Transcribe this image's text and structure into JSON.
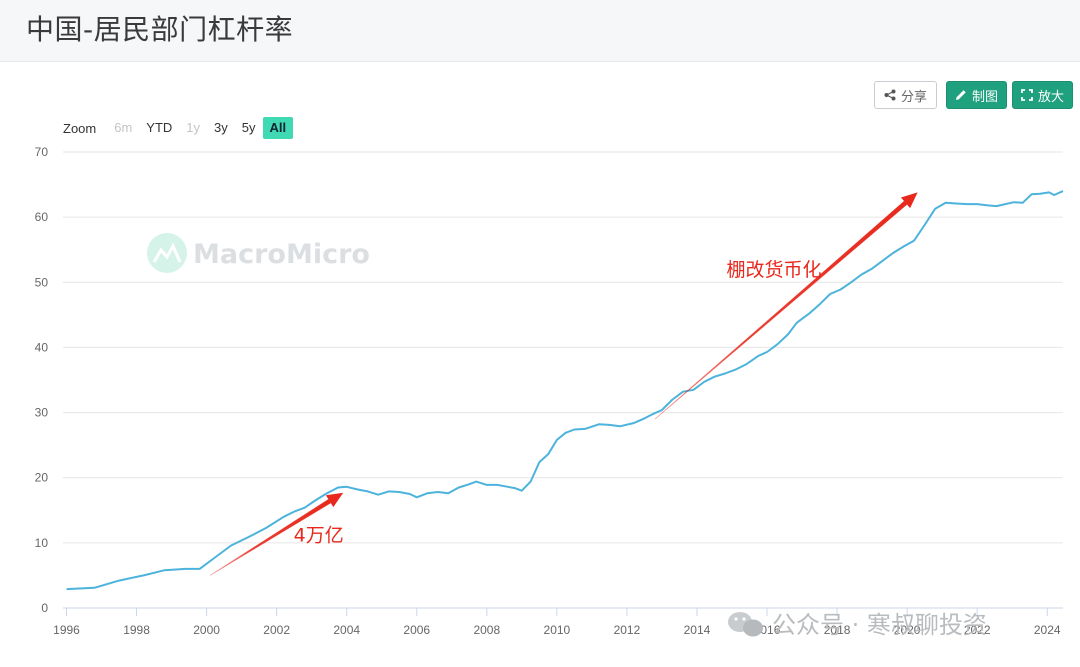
{
  "page": {
    "title": "中国-居民部门杠杆率"
  },
  "toolbar": {
    "share_label": "分享",
    "draw_label": "制图",
    "zoomout_label": "放大"
  },
  "zoom": {
    "label": "Zoom",
    "buttons": [
      {
        "label": "6m",
        "state": "disabled"
      },
      {
        "label": "YTD",
        "state": "normal"
      },
      {
        "label": "1y",
        "state": "disabled"
      },
      {
        "label": "3y",
        "state": "normal"
      },
      {
        "label": "5y",
        "state": "normal"
      },
      {
        "label": "All",
        "state": "active"
      }
    ]
  },
  "watermark": {
    "text": "MacroMicro"
  },
  "footer_watermark": {
    "text": "公众号 · 寒叔聊投资"
  },
  "colors": {
    "line": "#4cb3dc",
    "arrow": "#e8281c",
    "accent": "#1fa17f",
    "active_zoom": "#3fd9b4"
  },
  "annotations": [
    {
      "text": "4万亿",
      "from": [
        2000.1,
        5.0
      ],
      "to": [
        2003.9,
        17.7
      ],
      "label_at": [
        2003.2,
        10.2
      ]
    },
    {
      "text": "棚改货币化",
      "from": [
        2012.8,
        29.0
      ],
      "to": [
        2020.3,
        63.8
      ],
      "label_at": [
        2016.2,
        51.0
      ]
    }
  ],
  "chart_data": {
    "type": "line",
    "title": "",
    "xlabel": "",
    "ylabel": "",
    "xlim": [
      1995.9,
      2024.45
    ],
    "ylim": [
      0,
      70
    ],
    "x_ticks": [
      1996,
      1998,
      2000,
      2002,
      2004,
      2006,
      2008,
      2010,
      2012,
      2014,
      2016,
      2018,
      2020,
      2022,
      2024
    ],
    "y_ticks": [
      0,
      10,
      20,
      30,
      40,
      50,
      60,
      70
    ],
    "grid": "horizontal",
    "series": [
      {
        "name": "",
        "points": [
          [
            1996.0,
            2.9
          ],
          [
            1996.8,
            3.1
          ],
          [
            1997.5,
            4.2
          ],
          [
            1998.2,
            5.0
          ],
          [
            1998.8,
            5.8
          ],
          [
            1999.4,
            6.0
          ],
          [
            1999.8,
            6.0
          ],
          [
            2000.2,
            7.6
          ],
          [
            2000.7,
            9.6
          ],
          [
            2001.2,
            10.9
          ],
          [
            2001.7,
            12.3
          ],
          [
            2002.2,
            14.0
          ],
          [
            2002.5,
            14.8
          ],
          [
            2002.8,
            15.4
          ],
          [
            2003.1,
            16.5
          ],
          [
            2003.4,
            17.5
          ],
          [
            2003.75,
            18.5
          ],
          [
            2004.0,
            18.6
          ],
          [
            2004.3,
            18.2
          ],
          [
            2004.6,
            17.9
          ],
          [
            2004.9,
            17.4
          ],
          [
            2005.2,
            17.9
          ],
          [
            2005.5,
            17.8
          ],
          [
            2005.8,
            17.5
          ],
          [
            2006.0,
            17.0
          ],
          [
            2006.3,
            17.6
          ],
          [
            2006.6,
            17.8
          ],
          [
            2006.9,
            17.6
          ],
          [
            2007.2,
            18.5
          ],
          [
            2007.5,
            19.0
          ],
          [
            2007.7,
            19.4
          ],
          [
            2008.0,
            18.9
          ],
          [
            2008.3,
            18.9
          ],
          [
            2008.6,
            18.6
          ],
          [
            2008.8,
            18.4
          ],
          [
            2009.0,
            18.0
          ],
          [
            2009.25,
            19.4
          ],
          [
            2009.5,
            22.4
          ],
          [
            2009.75,
            23.6
          ],
          [
            2010.0,
            25.8
          ],
          [
            2010.25,
            26.9
          ],
          [
            2010.5,
            27.4
          ],
          [
            2010.8,
            27.5
          ],
          [
            2011.2,
            28.2
          ],
          [
            2011.5,
            28.1
          ],
          [
            2011.8,
            27.9
          ],
          [
            2012.2,
            28.4
          ],
          [
            2012.5,
            29.1
          ],
          [
            2012.75,
            29.8
          ],
          [
            2013.0,
            30.4
          ],
          [
            2013.3,
            32.0
          ],
          [
            2013.6,
            33.2
          ],
          [
            2013.9,
            33.5
          ],
          [
            2014.2,
            34.7
          ],
          [
            2014.5,
            35.5
          ],
          [
            2014.8,
            36.0
          ],
          [
            2015.1,
            36.6
          ],
          [
            2015.4,
            37.4
          ],
          [
            2015.75,
            38.7
          ],
          [
            2016.0,
            39.3
          ],
          [
            2016.3,
            40.5
          ],
          [
            2016.6,
            42.0
          ],
          [
            2016.85,
            43.8
          ],
          [
            2017.2,
            45.2
          ],
          [
            2017.5,
            46.6
          ],
          [
            2017.8,
            48.2
          ],
          [
            2018.1,
            48.9
          ],
          [
            2018.4,
            50.0
          ],
          [
            2018.7,
            51.2
          ],
          [
            2019.0,
            52.1
          ],
          [
            2019.3,
            53.3
          ],
          [
            2019.6,
            54.5
          ],
          [
            2019.9,
            55.5
          ],
          [
            2020.2,
            56.4
          ],
          [
            2020.5,
            58.8
          ],
          [
            2020.8,
            61.3
          ],
          [
            2021.1,
            62.2
          ],
          [
            2021.4,
            62.1
          ],
          [
            2021.7,
            62.0
          ],
          [
            2022.0,
            62.0
          ],
          [
            2022.3,
            61.8
          ],
          [
            2022.55,
            61.7
          ],
          [
            2022.8,
            62.0
          ],
          [
            2023.05,
            62.3
          ],
          [
            2023.3,
            62.2
          ],
          [
            2023.55,
            63.5
          ],
          [
            2023.8,
            63.6
          ],
          [
            2024.05,
            63.8
          ],
          [
            2024.2,
            63.4
          ],
          [
            2024.45,
            64.0
          ]
        ]
      }
    ]
  }
}
